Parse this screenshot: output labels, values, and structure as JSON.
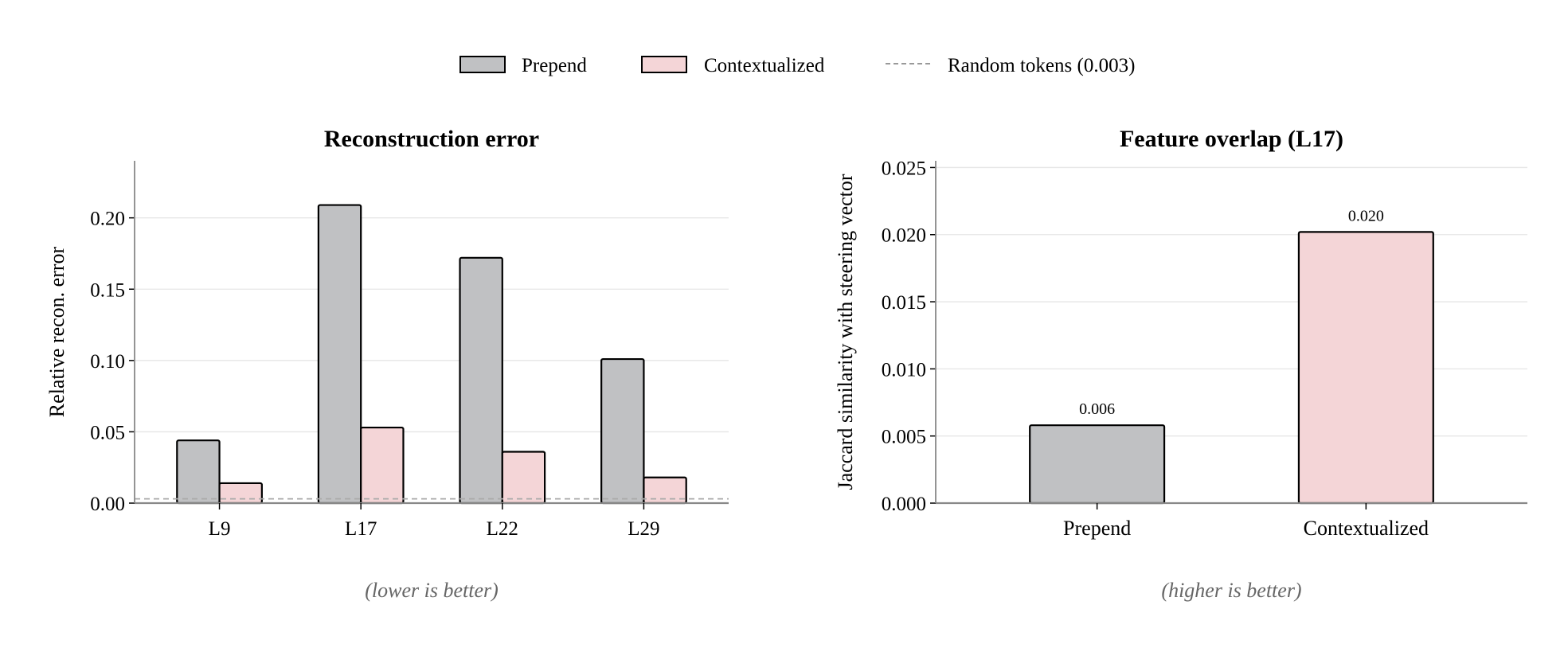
{
  "legend": {
    "prepend": "Prepend",
    "contextualized": "Contextualized",
    "random": "Random tokens (0.003)"
  },
  "colors": {
    "prepend": "#c0c1c3",
    "contextualized": "#f4d5d7",
    "random": "#aaaaaa",
    "grid": "#e6e6e6"
  },
  "chart_data": [
    {
      "type": "bar",
      "title": "Reconstruction error",
      "subtitle": "(lower is better)",
      "xlabel": "",
      "ylabel": "Relative recon. error",
      "categories": [
        "L9",
        "L17",
        "L22",
        "L29"
      ],
      "series": [
        {
          "name": "Prepend",
          "values": [
            0.044,
            0.209,
            0.172,
            0.101
          ]
        },
        {
          "name": "Contextualized",
          "values": [
            0.014,
            0.053,
            0.036,
            0.018
          ]
        }
      ],
      "reference_line": {
        "name": "Random tokens",
        "value": 0.003
      },
      "ylim": [
        0,
        0.24
      ],
      "yticks": [
        "0.00",
        "0.05",
        "0.10",
        "0.15",
        "0.20"
      ],
      "grid": true
    },
    {
      "type": "bar",
      "title": "Feature overlap (L17)",
      "subtitle": "(higher is better)",
      "xlabel": "",
      "ylabel": "Jaccard similarity with steering vector",
      "categories": [
        "Prepend",
        "Contextualized"
      ],
      "values": [
        0.0058,
        0.0202
      ],
      "data_labels": [
        "0.006",
        "0.020"
      ],
      "ylim": [
        0,
        0.0255
      ],
      "yticks": [
        "0.000",
        "0.005",
        "0.010",
        "0.015",
        "0.020",
        "0.025"
      ],
      "grid": true
    }
  ]
}
